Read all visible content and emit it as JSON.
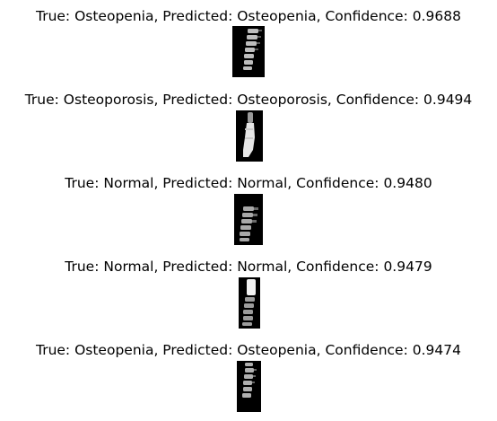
{
  "panels": [
    {
      "title": "True: Osteopenia, Predicted: Osteopenia, Confidence: 0.9688",
      "image": "spine-xray-icon"
    },
    {
      "title": "True: Osteoporosis, Predicted: Osteoporosis, Confidence: 0.9494",
      "image": "spine-xray-icon"
    },
    {
      "title": "True: Normal, Predicted: Normal, Confidence: 0.9480",
      "image": "spine-xray-icon"
    },
    {
      "title": "True: Normal, Predicted: Normal, Confidence: 0.9479",
      "image": "spine-xray-icon"
    },
    {
      "title": "True: Osteopenia, Predicted: Osteopenia, Confidence: 0.9474",
      "image": "spine-xray-icon"
    }
  ]
}
